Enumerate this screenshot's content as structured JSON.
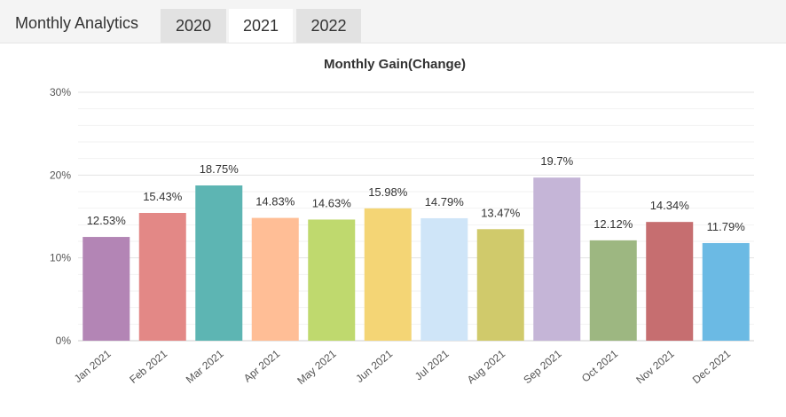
{
  "header": {
    "title": "Monthly Analytics",
    "tabs": [
      {
        "label": "2020",
        "active": false
      },
      {
        "label": "2021",
        "active": true
      },
      {
        "label": "2022",
        "active": false
      }
    ]
  },
  "chart_data": {
    "type": "bar",
    "title": "Monthly Gain(Change)",
    "xlabel": "",
    "ylabel": "",
    "ylim": [
      0,
      30
    ],
    "yticks": [
      "0%",
      "10%",
      "20%",
      "30%"
    ],
    "grid": true,
    "legend": "none",
    "categories": [
      "Jan 2021",
      "Feb 2021",
      "Mar 2021",
      "Apr 2021",
      "May 2021",
      "Jun 2021",
      "Jul 2021",
      "Aug 2021",
      "Sep 2021",
      "Oct 2021",
      "Nov 2021",
      "Dec 2021"
    ],
    "values": [
      12.53,
      15.43,
      18.75,
      14.83,
      14.63,
      15.98,
      14.79,
      13.47,
      19.7,
      12.12,
      14.34,
      11.79
    ],
    "data_labels": [
      "12.53%",
      "15.43%",
      "18.75%",
      "14.83%",
      "14.63%",
      "15.98%",
      "14.79%",
      "13.47%",
      "19.7%",
      "12.12%",
      "14.34%",
      "11.79%"
    ],
    "colors": [
      "#b385b5",
      "#e38886",
      "#5db5b3",
      "#ffbe96",
      "#bfd96e",
      "#f4d575",
      "#cfe5f8",
      "#d0ca6b",
      "#c5b5d7",
      "#9db781",
      "#c66e70",
      "#6bbae4"
    ]
  }
}
